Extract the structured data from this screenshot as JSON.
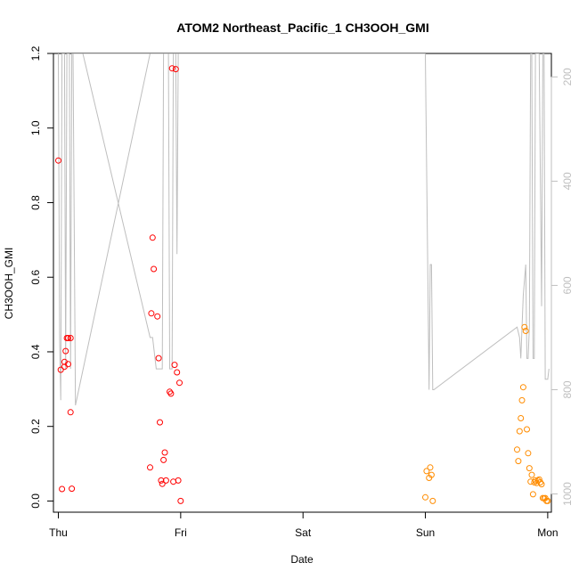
{
  "chart_data": {
    "type": "scatter",
    "title": "ATOM2 Northeast_Pacific_1 CH3OOH_GMI",
    "xlabel": "Date",
    "ylabel": "CH3OOH_GMI",
    "x_ticks": [
      "Thu",
      "Fri",
      "Sat",
      "Sun",
      "Mon"
    ],
    "xlim": [
      -0.04,
      4.03
    ],
    "ylim": [
      -0.03,
      1.2
    ],
    "y_ticks": [
      0.0,
      0.2,
      0.4,
      0.6,
      0.8,
      1.0,
      1.2
    ],
    "y2_ticks": [
      200,
      400,
      600,
      800,
      1000
    ],
    "y2lim": [
      1035,
      155
    ],
    "y2_reversed": true,
    "grid": false,
    "colors": {
      "series_1": "#ff0000",
      "series_2": "#ff8c00",
      "altitude_line": "#bebebe",
      "axis": "#000000",
      "right_axis": "#bfbfbf"
    },
    "series": [
      {
        "color": "#ff0000",
        "x": [
          0.0,
          0.02,
          0.03,
          0.05,
          0.05,
          0.06,
          0.07,
          0.08,
          0.08,
          0.1,
          0.1,
          0.11,
          0.75,
          0.76,
          0.77,
          0.78,
          0.81,
          0.82,
          0.83,
          0.84,
          0.85,
          0.86,
          0.87,
          0.88,
          0.91,
          0.92,
          0.93,
          0.94,
          0.95,
          0.96,
          0.97,
          0.98,
          0.99,
          1.0
        ],
        "y": [
          0.913,
          0.352,
          0.032,
          0.373,
          0.36,
          0.402,
          0.437,
          0.367,
          0.437,
          0.238,
          0.437,
          0.033,
          0.09,
          0.503,
          0.706,
          0.622,
          0.495,
          0.383,
          0.211,
          0.055,
          0.046,
          0.11,
          0.13,
          0.055,
          0.293,
          0.288,
          1.16,
          0.052,
          0.365,
          1.158,
          0.345,
          0.055,
          0.317,
          0.0
        ]
      },
      {
        "color": "#ff8c00",
        "x": [
          3.0,
          3.01,
          3.03,
          3.04,
          3.05,
          3.06,
          3.75,
          3.76,
          3.77,
          3.78,
          3.79,
          3.8,
          3.81,
          3.82,
          3.83,
          3.84,
          3.85,
          3.86,
          3.87,
          3.88,
          3.89,
          3.9,
          3.91,
          3.92,
          3.93,
          3.94,
          3.95,
          3.96,
          3.97,
          3.98,
          3.99,
          4.0
        ],
        "y": [
          0.01,
          0.08,
          0.062,
          0.09,
          0.07,
          0.0,
          0.138,
          0.107,
          0.187,
          0.222,
          0.27,
          0.305,
          0.466,
          0.456,
          0.192,
          0.128,
          0.088,
          0.052,
          0.07,
          0.018,
          0.05,
          0.055,
          0.048,
          0.055,
          0.058,
          0.05,
          0.045,
          0.008,
          0.007,
          0.008,
          0.0,
          0.0
        ]
      }
    ],
    "altitude_line": {
      "note": "",
      "x": [
        0.0,
        0.01,
        0.02,
        0.03,
        0.05,
        0.06,
        0.07,
        0.09,
        0.1,
        0.11,
        0.12,
        0.2,
        0.75,
        0.77,
        0.8,
        0.83,
        0.85,
        0.86,
        0.88,
        0.9,
        0.91,
        0.92,
        0.93,
        0.94,
        0.95,
        0.96,
        0.97,
        0.98,
        0.99,
        1.0,
        0.2,
        0.12,
        0.14,
        0.75,
        3.0,
        3.03,
        3.04,
        3.05,
        3.06,
        3.07,
        3.75,
        3.77,
        3.78,
        3.8,
        3.82,
        3.83,
        3.84,
        3.85,
        3.86,
        3.87,
        3.88,
        3.89,
        3.9,
        3.93,
        3.95,
        3.96,
        3.97,
        3.98,
        4.0,
        4.01
      ],
      "y": [
        155,
        700,
        820,
        155,
        155,
        760,
        155,
        155,
        760,
        155,
        155,
        155,
        700,
        700,
        760,
        760,
        760,
        155,
        155,
        155,
        760,
        760,
        760,
        155,
        155,
        155,
        540,
        155,
        155,
        155,
        155,
        155,
        830,
        155,
        155,
        800,
        560,
        560,
        800,
        800,
        680,
        700,
        740,
        620,
        560,
        740,
        740,
        680,
        155,
        155,
        740,
        740,
        155,
        155,
        640,
        155,
        155,
        780,
        780,
        760
      ]
    }
  }
}
